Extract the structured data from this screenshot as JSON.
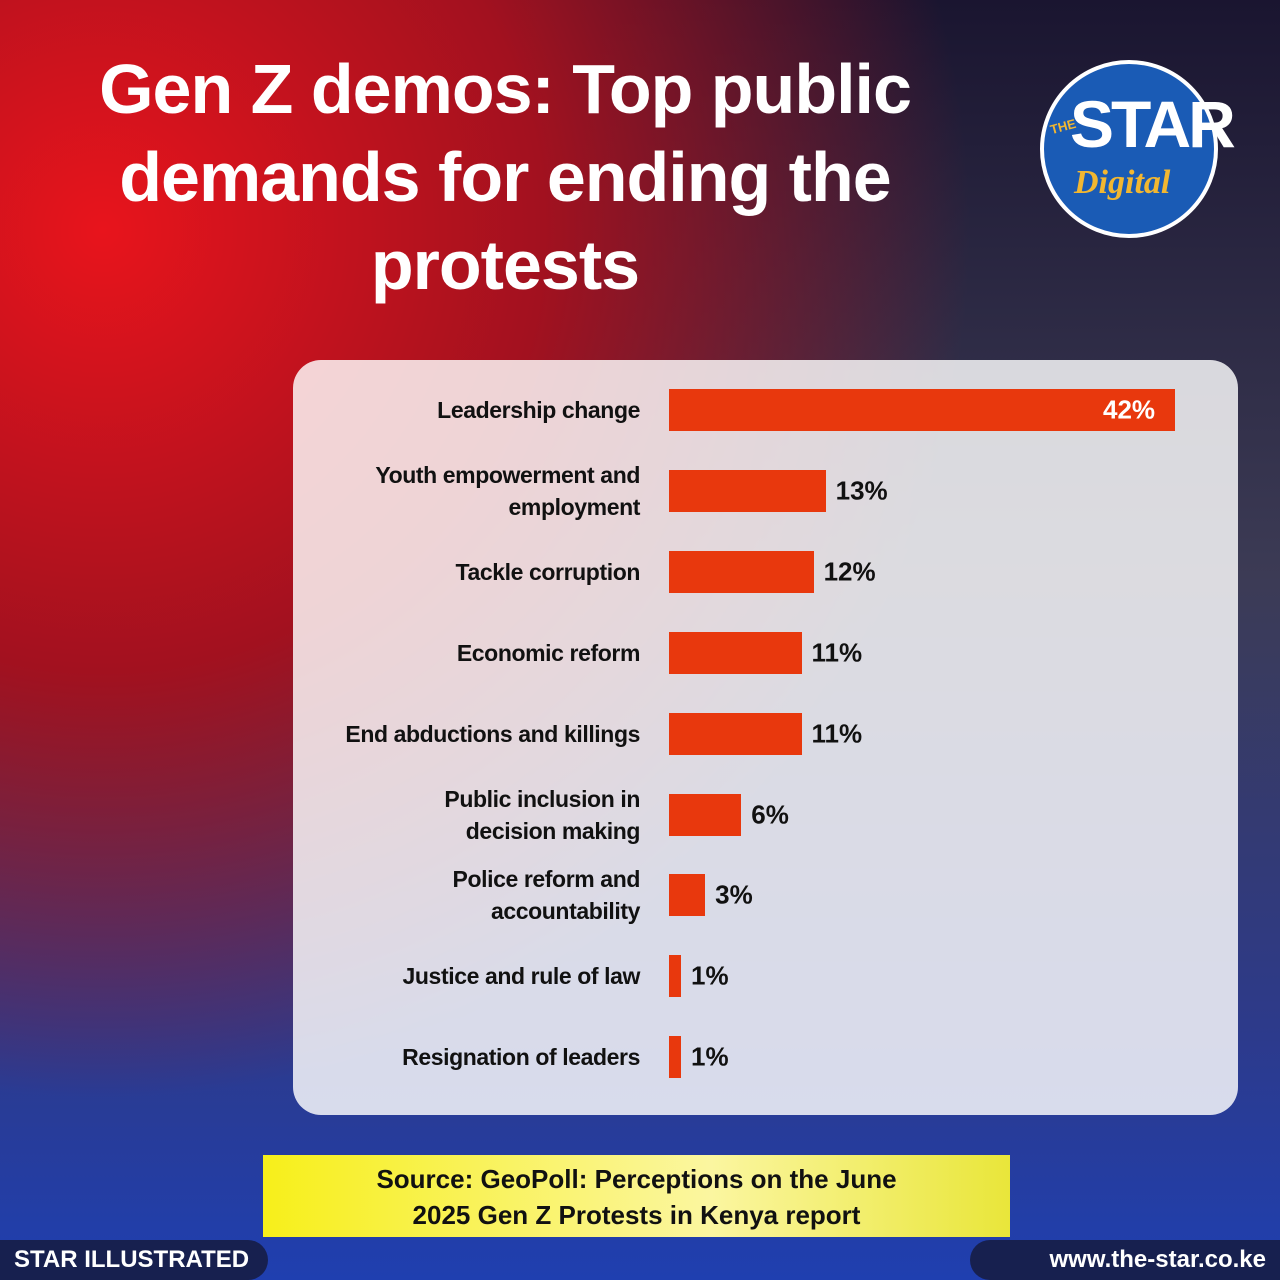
{
  "chart_data": {
    "type": "bar",
    "title": "Gen Z demos: Top public demands for ending the protests",
    "categories": [
      "Leadership change",
      "Youth empowerment and\nemployment",
      "Tackle corruption",
      "Economic reform",
      "End abductions and killings",
      "Public inclusion in\ndecision making",
      "Police reform and\naccountability",
      "Justice and rule of law",
      "Resignation of leaders"
    ],
    "values": [
      42,
      13,
      12,
      11,
      11,
      6,
      3,
      1,
      1
    ],
    "value_labels": [
      "42%",
      "13%",
      "12%",
      "11%",
      "11%",
      "6%",
      "3%",
      "1%",
      "1%"
    ],
    "color": "#e8380d",
    "source": "Source: GeoPoll: Perceptions on the June 2025 Gen Z Protests in Kenya report"
  },
  "logo": {
    "the": "THE",
    "star": "STAR",
    "digital": "Digital"
  },
  "footer": {
    "left": "STAR ILLUSTRATED",
    "right": "www.the-star.co.ke"
  }
}
